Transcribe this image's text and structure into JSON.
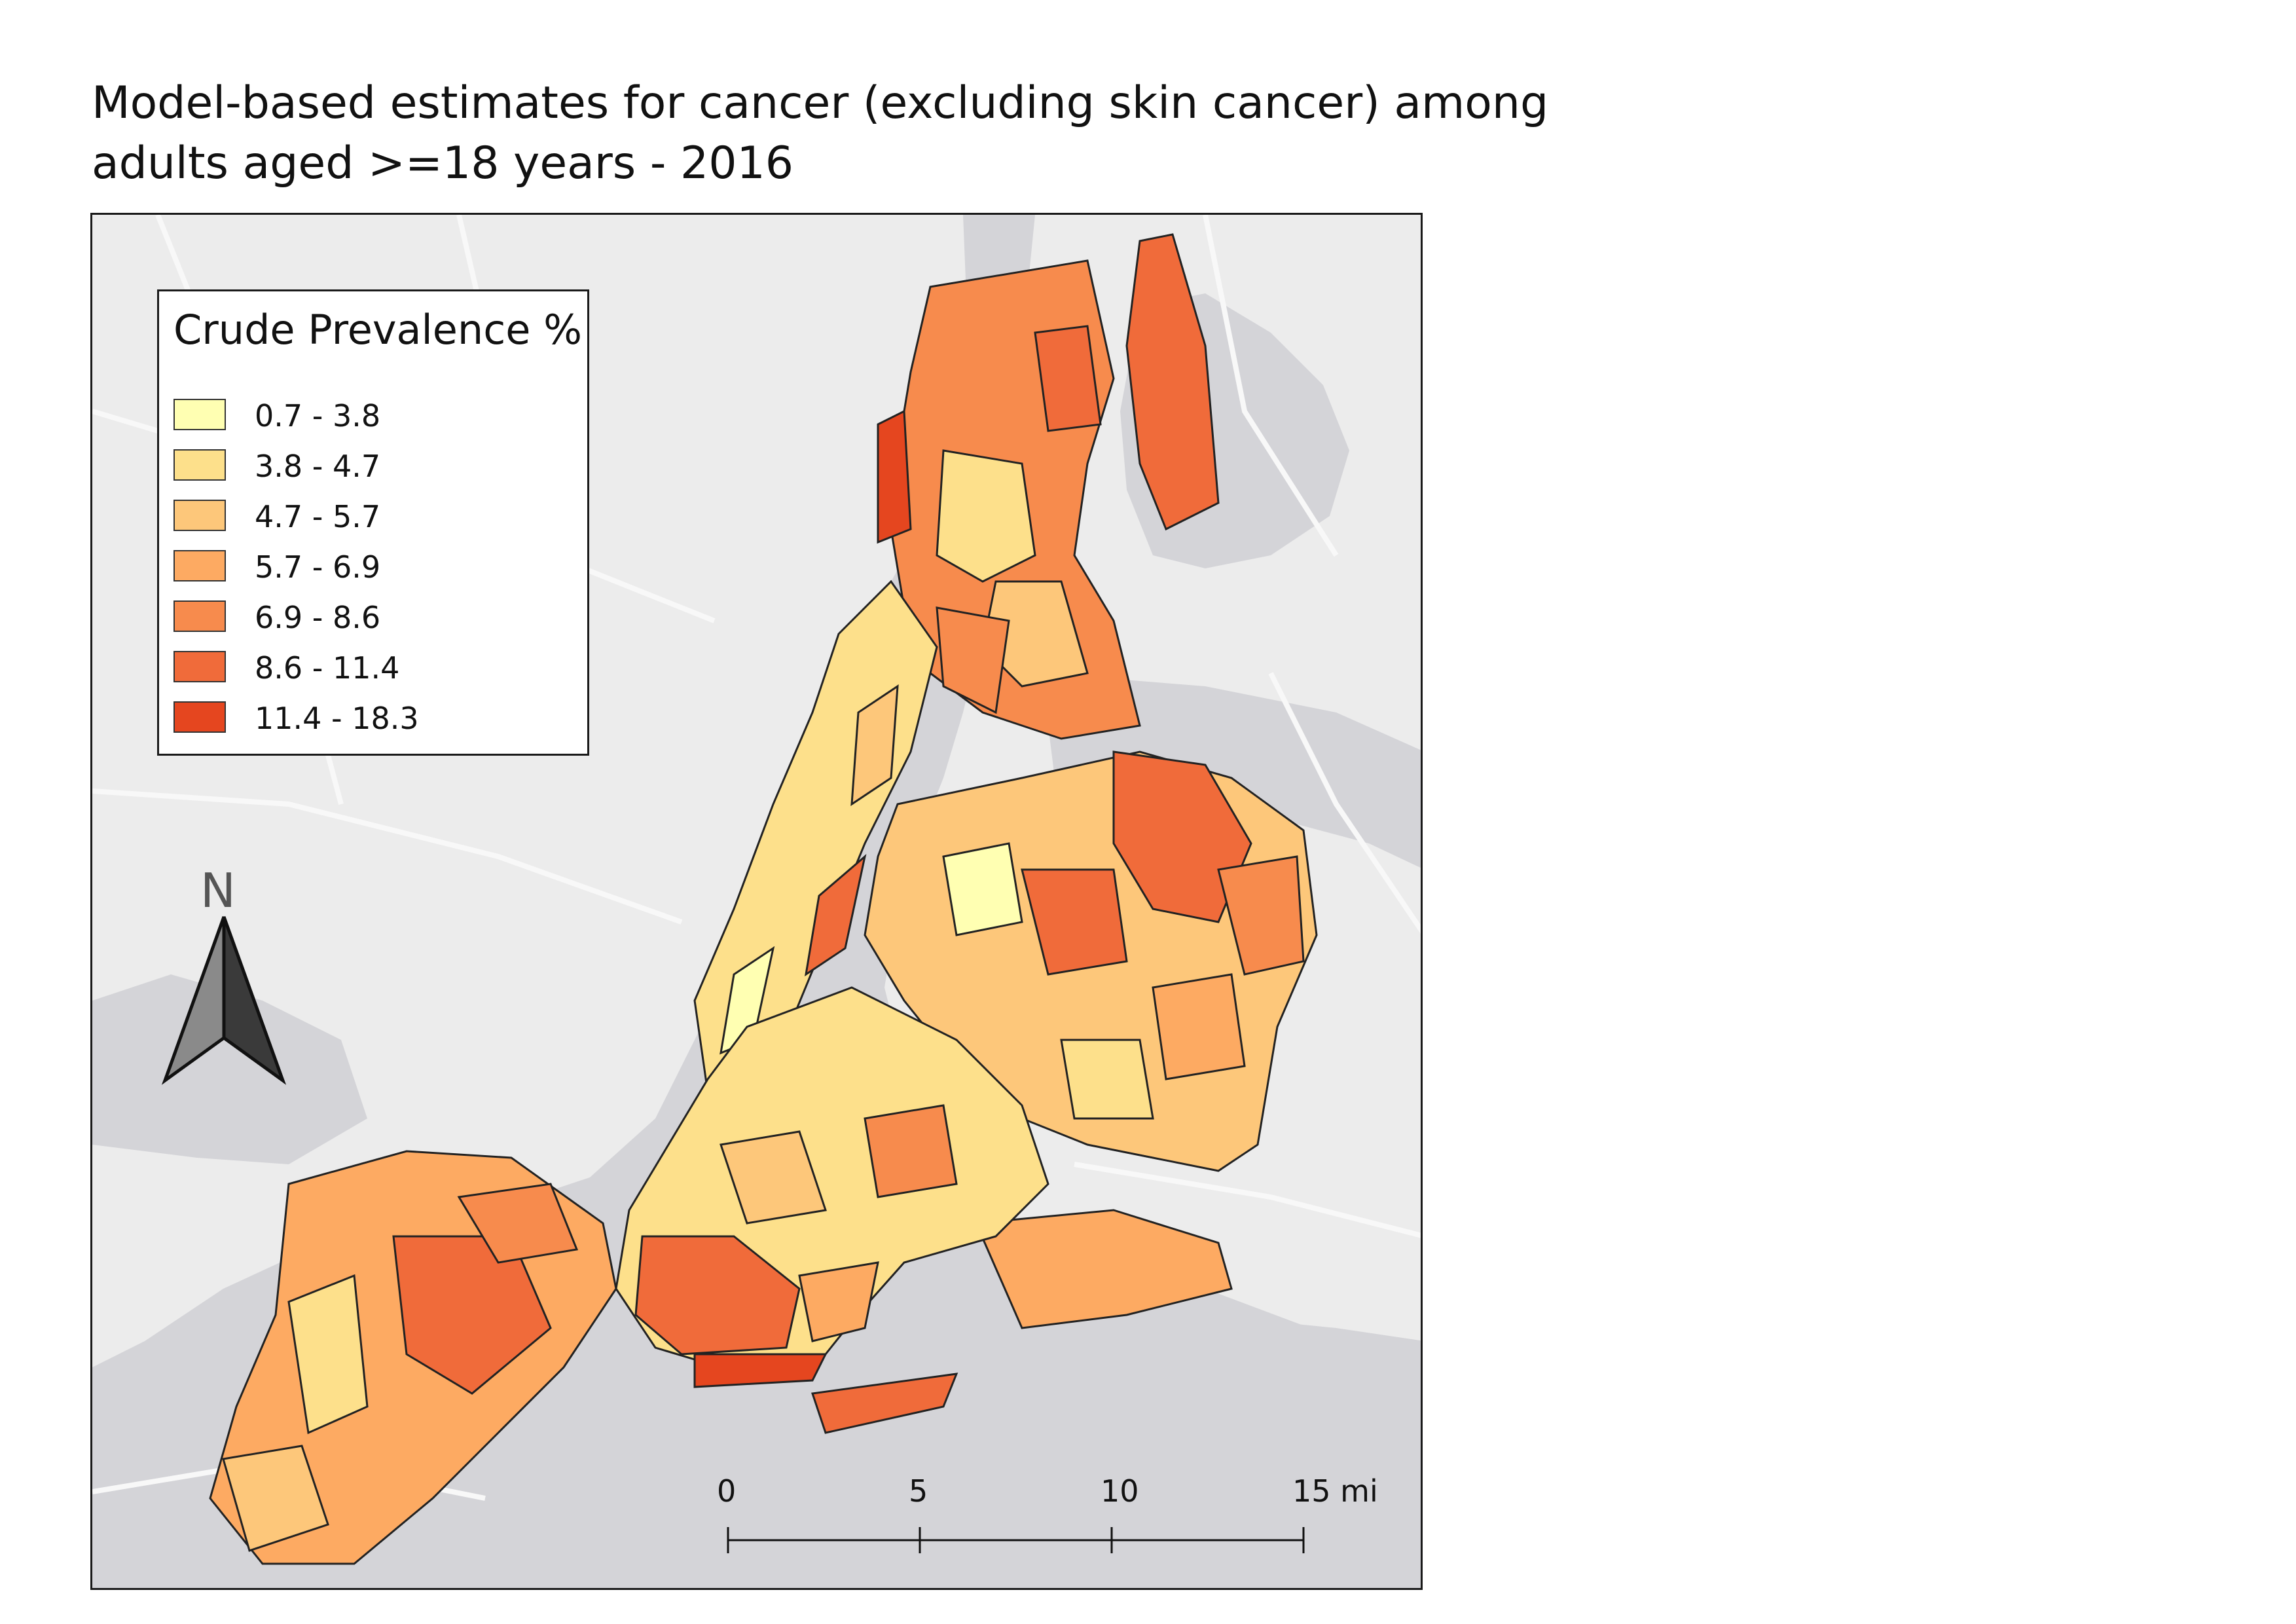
{
  "title": {
    "line1": "Model-based estimates for cancer (excluding skin cancer) among",
    "line2": "adults aged >=18 years - 2016"
  },
  "legend": {
    "title": "Crude Prevalence %",
    "classes": [
      {
        "label": "0.7 - 3.8",
        "color": "#ffffb2"
      },
      {
        "label": "3.8 - 4.7",
        "color": "#fde08b"
      },
      {
        "label": "4.7 - 5.7",
        "color": "#fdc77a"
      },
      {
        "label": "5.7 - 6.9",
        "color": "#fdaa62"
      },
      {
        "label": "6.9 - 8.6",
        "color": "#f78b4d"
      },
      {
        "label": "8.6 - 11.4",
        "color": "#f06b3a"
      },
      {
        "label": "11.4 - 18.3",
        "color": "#e5461f"
      }
    ]
  },
  "north_arrow": {
    "label": "N"
  },
  "scale_bar": {
    "ticks": [
      "0",
      "5",
      "10",
      "15 mi"
    ]
  },
  "basemap_colors": {
    "water": "#d4d4d8",
    "land": "#ececec",
    "roads": "#f8f8f8"
  }
}
